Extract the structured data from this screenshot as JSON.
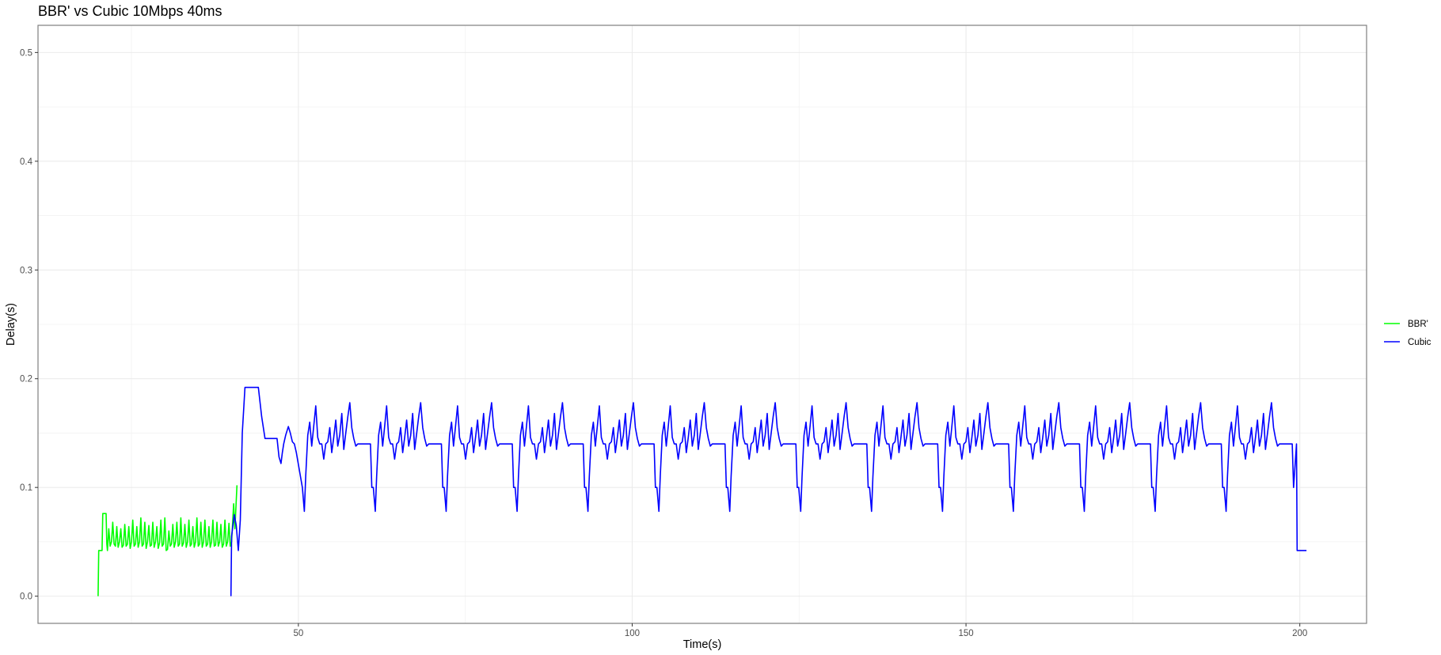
{
  "chart_data": {
    "type": "line",
    "title": "BBR' vs Cubic 10Mbps 40ms",
    "xlabel": "Time(s)",
    "ylabel": "Delay(s)",
    "xlim": [
      11,
      210
    ],
    "ylim": [
      -0.025,
      0.525
    ],
    "x_ticks": [
      50,
      100,
      150,
      200
    ],
    "y_ticks": [
      0.0,
      0.1,
      0.2,
      0.3,
      0.4,
      0.5
    ],
    "x_tick_labels": [
      "50",
      "100",
      "150",
      "200"
    ],
    "y_tick_labels": [
      "0.0",
      "0.1",
      "0.2",
      "0.3",
      "0.4",
      "0.5"
    ],
    "grid": true,
    "legend_position": "right",
    "series": [
      {
        "name": "BBR'",
        "color": "#00ff00",
        "x": [
          20.0,
          20.1,
          20.5,
          20.6,
          20.7,
          21.2,
          21.3,
          21.4,
          21.6,
          21.8,
          22.0,
          22.2,
          22.4,
          22.6,
          22.8,
          23.0,
          23.2,
          23.4,
          23.6,
          23.8,
          24.0,
          24.2,
          24.4,
          24.6,
          24.8,
          25.0,
          25.2,
          25.4,
          25.6,
          25.8,
          26.0,
          26.2,
          26.4,
          26.6,
          26.8,
          27.0,
          27.2,
          27.4,
          27.6,
          27.8,
          28.0,
          28.2,
          28.4,
          28.6,
          28.8,
          29.0,
          29.2,
          29.4,
          29.6,
          29.8,
          30.0,
          30.2,
          30.4,
          30.6,
          30.8,
          31.0,
          31.2,
          31.4,
          31.6,
          31.8,
          32.0,
          32.2,
          32.4,
          32.6,
          32.8,
          33.0,
          33.2,
          33.4,
          33.6,
          33.8,
          34.0,
          34.2,
          34.4,
          34.6,
          34.8,
          35.0,
          35.2,
          35.4,
          35.6,
          35.8,
          36.0,
          36.2,
          36.4,
          36.6,
          36.8,
          37.0,
          37.2,
          37.4,
          37.6,
          37.8,
          38.0,
          38.2,
          38.4,
          38.6,
          38.8,
          39.0,
          39.2,
          39.4,
          39.6,
          39.8,
          40.0,
          40.3,
          40.5,
          40.8
        ],
        "y": [
          0.0,
          0.042,
          0.042,
          0.042,
          0.076,
          0.076,
          0.048,
          0.042,
          0.062,
          0.046,
          0.05,
          0.068,
          0.048,
          0.046,
          0.064,
          0.045,
          0.05,
          0.062,
          0.045,
          0.047,
          0.066,
          0.046,
          0.048,
          0.064,
          0.044,
          0.05,
          0.07,
          0.046,
          0.048,
          0.064,
          0.045,
          0.05,
          0.072,
          0.046,
          0.048,
          0.068,
          0.044,
          0.05,
          0.065,
          0.046,
          0.047,
          0.068,
          0.045,
          0.05,
          0.064,
          0.044,
          0.049,
          0.07,
          0.046,
          0.048,
          0.072,
          0.042,
          0.043,
          0.06,
          0.046,
          0.048,
          0.066,
          0.045,
          0.05,
          0.068,
          0.046,
          0.048,
          0.072,
          0.046,
          0.049,
          0.066,
          0.045,
          0.05,
          0.07,
          0.046,
          0.048,
          0.064,
          0.045,
          0.05,
          0.072,
          0.046,
          0.048,
          0.068,
          0.045,
          0.05,
          0.07,
          0.046,
          0.048,
          0.064,
          0.045,
          0.05,
          0.07,
          0.046,
          0.047,
          0.068,
          0.046,
          0.05,
          0.066,
          0.045,
          0.048,
          0.07,
          0.046,
          0.05,
          0.067,
          0.046,
          0.05,
          0.085,
          0.062,
          0.102
        ]
      },
      {
        "name": "Cubic",
        "color": "#0000ff",
        "x": [
          39.9,
          40.0,
          40.4,
          40.7,
          41.0,
          41.3,
          41.6,
          42.0,
          42.2,
          42.4,
          43.0,
          43.5,
          44.0,
          44.5,
          45.0,
          45.6,
          46.0,
          46.5,
          46.8,
          47.1,
          47.4,
          47.6,
          47.8,
          48.1,
          48.5,
          48.8,
          49.1,
          49.4,
          49.7
        ],
        "y": [
          0.0,
          0.055,
          0.075,
          0.065,
          0.042,
          0.07,
          0.15,
          0.192,
          0.192,
          0.192,
          0.192,
          0.192,
          0.192,
          0.165,
          0.145,
          0.145,
          0.145,
          0.145,
          0.145,
          0.128,
          0.122,
          0.132,
          0.14,
          0.148,
          0.156,
          0.15,
          0.142,
          0.14,
          0.132
        ]
      }
    ]
  },
  "legend": {
    "items": [
      {
        "label": "BBR'",
        "color": "#00ff00"
      },
      {
        "label": "Cubic",
        "color": "#0000ff"
      }
    ]
  }
}
